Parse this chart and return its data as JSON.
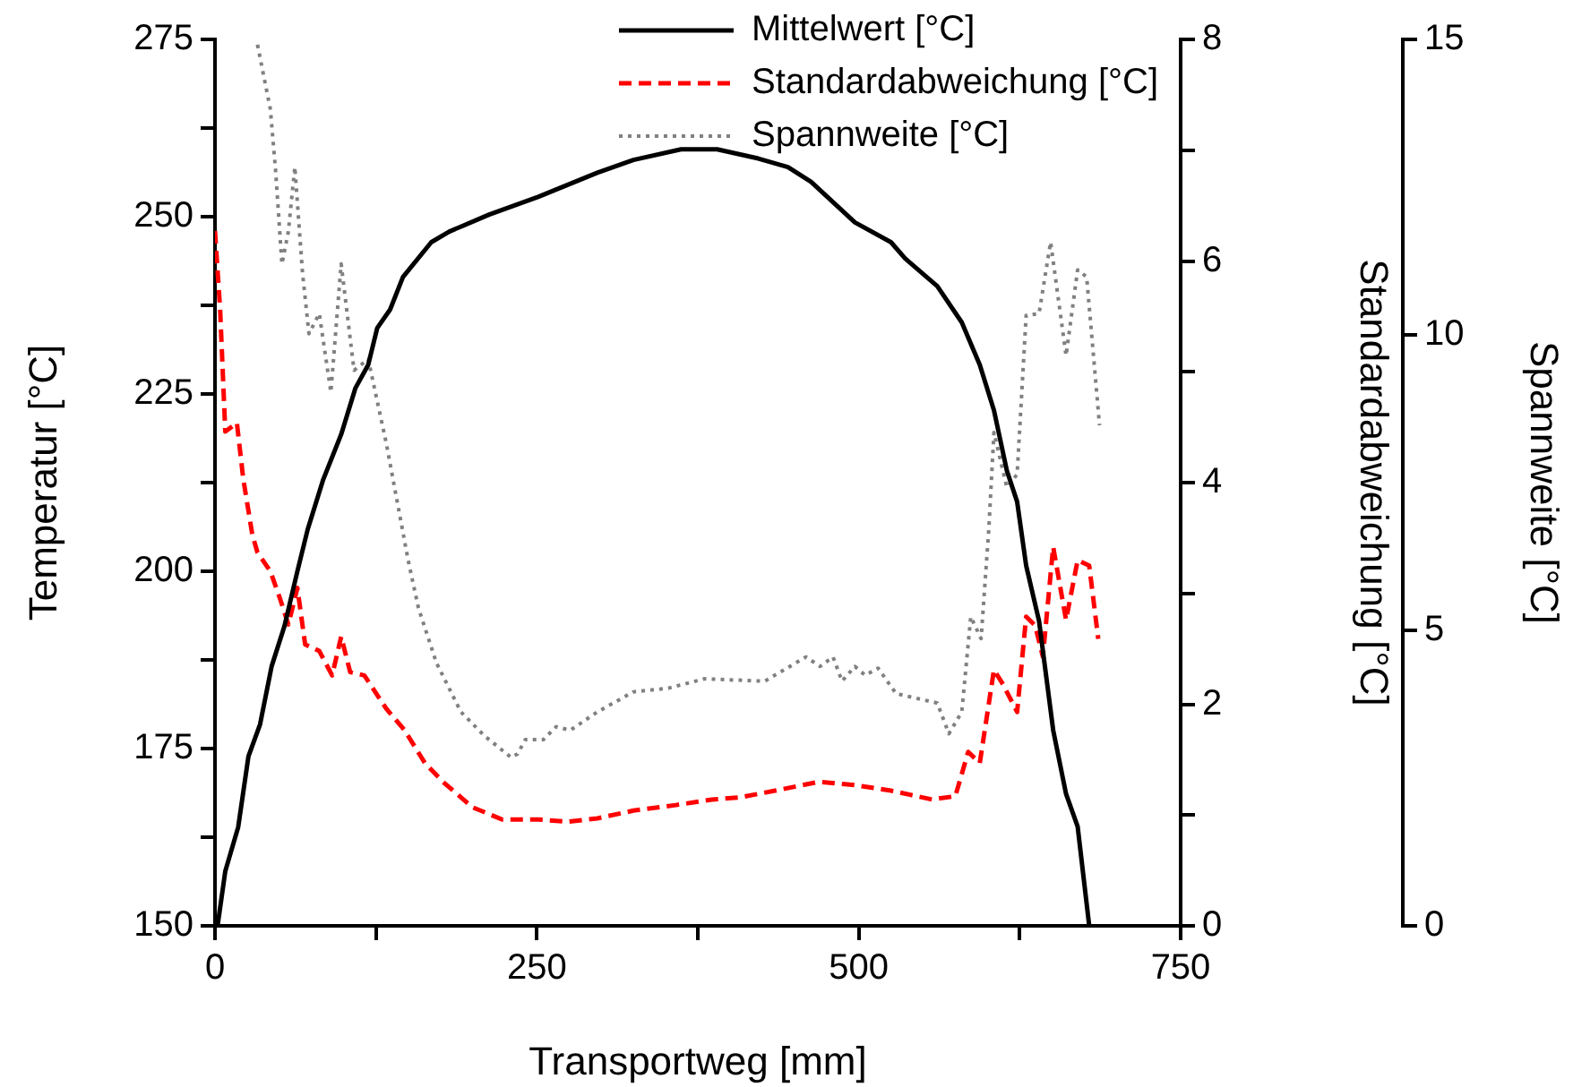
{
  "chart_data": {
    "type": "line",
    "xlabel": "Transportweg [mm]",
    "ylabel": "Temperatur [°C]",
    "y2label": "Standardabweichung [°C]",
    "y3label": "Spannweite [°C]",
    "xlim": [
      0,
      750
    ],
    "xticks": [
      0,
      {
        "value": 125,
        "label": null
      },
      250,
      {
        "value": 375,
        "label": null
      },
      500,
      {
        "value": 625,
        "label": null
      },
      750
    ],
    "ylim": [
      150,
      275
    ],
    "yticks": [
      150,
      {
        "value": 162.5,
        "label": null
      },
      175,
      {
        "value": 187.5,
        "label": null
      },
      200,
      {
        "value": 212.5,
        "label": null
      },
      225,
      {
        "value": 237.5,
        "label": null
      },
      250,
      {
        "value": 262.5,
        "label": null
      },
      275
    ],
    "y2lim": [
      0,
      8
    ],
    "y2ticks": [
      0,
      {
        "value": 1,
        "label": null
      },
      2,
      {
        "value": 3,
        "label": null
      },
      4,
      {
        "value": 5,
        "label": null
      },
      6,
      {
        "value": 7,
        "label": null
      },
      8
    ],
    "y3lim": [
      0,
      15
    ],
    "y3ticks": [
      0,
      5,
      10,
      15
    ],
    "grid": false,
    "legend": "top",
    "marker": "none",
    "series": [
      {
        "name": "Mittelwert [°C]",
        "color": "#000000",
        "line_style": "solid",
        "x": [
          2,
          8,
          18,
          26,
          35,
          44,
          54,
          64,
          72,
          84,
          98,
          109,
          119,
          126,
          136,
          146,
          168,
          182,
          213,
          251,
          297,
          325,
          362,
          390,
          422,
          445,
          463,
          497,
          525,
          536,
          561,
          580,
          594,
          605,
          615,
          623,
          630,
          640,
          651,
          661,
          670,
          679
        ],
        "values": [
          150,
          157.7,
          163.9,
          173.9,
          178.4,
          186.6,
          192.3,
          200,
          205.9,
          212.9,
          219.3,
          225.8,
          229.1,
          234.3,
          236.9,
          241.5,
          246.4,
          247.9,
          250.3,
          252.8,
          256.2,
          258,
          259.5,
          259.5,
          258.2,
          257,
          254.9,
          249.2,
          246.4,
          244.1,
          240.2,
          235.1,
          229.1,
          222.7,
          214.2,
          209.8,
          200.8,
          193,
          177.6,
          168.6,
          164,
          150
        ]
      },
      {
        "name": "Standardabweichung [°C]",
        "color": "#ff0000",
        "line_style": "dashed",
        "axis": "y2",
        "x": [
          0,
          4,
          8,
          17,
          22,
          29,
          33,
          43,
          50,
          57,
          64,
          70,
          81,
          91,
          98,
          105,
          116,
          133,
          147,
          163,
          177,
          200,
          223,
          251,
          274,
          297,
          325,
          358,
          386,
          408,
          435,
          469,
          497,
          525,
          557,
          575,
          585,
          594,
          605,
          612,
          623,
          630,
          637,
          643,
          651,
          661,
          670,
          679,
          686
        ],
        "values": [
          6.27,
          5.56,
          4.46,
          4.54,
          4.03,
          3.53,
          3.37,
          3.2,
          2.97,
          2.72,
          3.05,
          2.54,
          2.48,
          2.26,
          2.61,
          2.29,
          2.26,
          1.96,
          1.77,
          1.47,
          1.3,
          1.07,
          0.96,
          0.96,
          0.94,
          0.97,
          1.04,
          1.09,
          1.14,
          1.16,
          1.22,
          1.3,
          1.27,
          1.22,
          1.14,
          1.17,
          1.57,
          1.47,
          2.31,
          2.18,
          1.93,
          2.79,
          2.71,
          2.43,
          3.42,
          2.76,
          3.3,
          3.25,
          2.59
        ]
      },
      {
        "name": "Spannweite [°C]",
        "color": "#808080",
        "line_style": "dotted",
        "axis": "y3",
        "x": [
          33,
          43,
          47,
          52,
          57,
          62,
          68,
          73,
          81,
          90,
          98,
          108,
          119,
          133,
          150,
          158,
          172,
          191,
          209,
          230,
          235,
          241,
          255,
          265,
          276,
          297,
          325,
          352,
          380,
          427,
          459,
          470,
          480,
          487,
          497,
          505,
          515,
          529,
          561,
          570,
          580,
          587,
          595,
          601,
          605,
          615,
          623,
          630,
          640,
          649,
          661,
          670,
          677,
          687
        ],
        "values": [
          14.91,
          13.82,
          12.8,
          11.2,
          11.75,
          12.84,
          11.04,
          10.02,
          10.36,
          9.03,
          11.2,
          9.4,
          9.59,
          8.17,
          6.19,
          5.38,
          4.45,
          3.62,
          3.22,
          2.85,
          2.91,
          3.15,
          3.15,
          3.37,
          3.31,
          3.62,
          3.96,
          4.02,
          4.18,
          4.14,
          4.55,
          4.39,
          4.55,
          4.14,
          4.39,
          4.24,
          4.36,
          3.93,
          3.77,
          3.25,
          3.62,
          5.23,
          4.86,
          6.71,
          8.35,
          7.42,
          7.64,
          10.33,
          10.36,
          11.57,
          9.65,
          11.1,
          10.98,
          8.47
        ]
      }
    ]
  }
}
